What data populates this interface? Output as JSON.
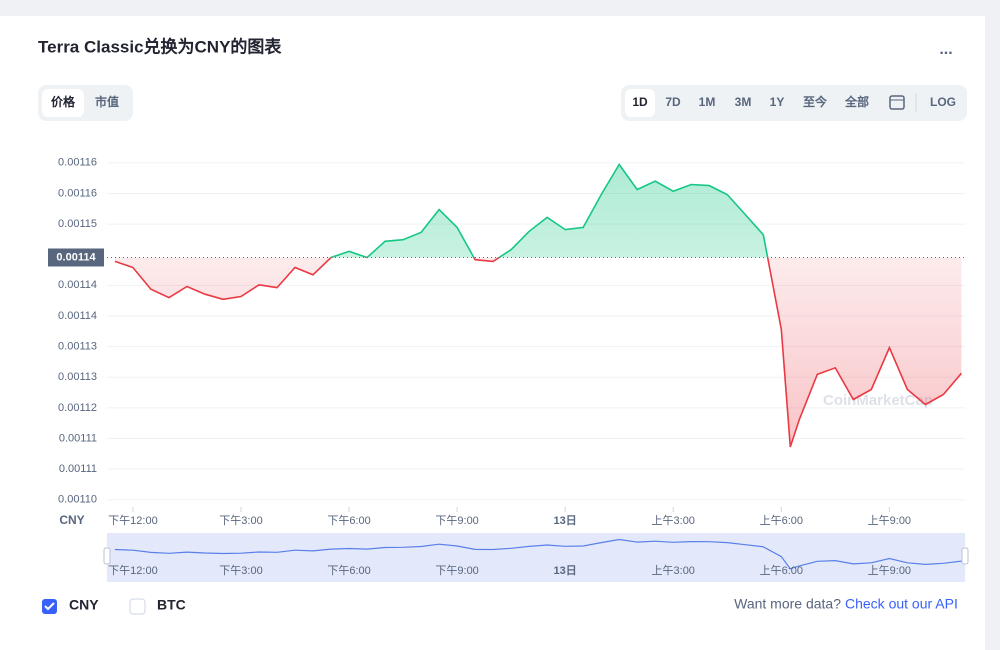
{
  "header": {
    "title": "Terra Classic兑换为CNY的图表",
    "menu": "...",
    "tabs": [
      "价格",
      "市值"
    ],
    "ranges": [
      "1D",
      "7D",
      "1M",
      "3M",
      "1Y",
      "至今",
      "全部"
    ],
    "log": "LOG"
  },
  "chart_data": {
    "type": "line",
    "currency_label": "CNY",
    "watermark": "CoinMarketCap",
    "up_color": "#16c784",
    "down_color": "#ea3943",
    "nav_color": "#5b7fe8",
    "grid": true,
    "baseline": {
      "value": 0.001147,
      "label": "0.00114"
    },
    "xlim": [
      11.28,
      35.1
    ],
    "ylim": [
      0.0011022,
      0.0011663
    ],
    "xticks": [
      {
        "value": 12,
        "label": "下午12:00"
      },
      {
        "value": 15,
        "label": "下午3:00"
      },
      {
        "value": 18,
        "label": "下午6:00"
      },
      {
        "value": 21,
        "label": "下午9:00"
      },
      {
        "value": 24,
        "label": "13日"
      },
      {
        "value": 27,
        "label": "上午3:00"
      },
      {
        "value": 30,
        "label": "上午6:00"
      },
      {
        "value": 33,
        "label": "上午9:00"
      }
    ],
    "yticks": [
      {
        "value": 0.0011035,
        "label": "0.00110"
      },
      {
        "value": 0.001109,
        "label": "0.00111"
      },
      {
        "value": 0.0011145,
        "label": "0.00111"
      },
      {
        "value": 0.00112,
        "label": "0.00112"
      },
      {
        "value": 0.0011255,
        "label": "0.00113"
      },
      {
        "value": 0.001131,
        "label": "0.00113"
      },
      {
        "value": 0.0011365,
        "label": "0.00114"
      },
      {
        "value": 0.001142,
        "label": "0.00114"
      },
      {
        "value": 0.001153,
        "label": "0.00115"
      },
      {
        "value": 0.0011585,
        "label": "0.00116"
      },
      {
        "value": 0.001164,
        "label": "0.00116"
      }
    ],
    "x": [
      11.5,
      12,
      12.5,
      13,
      13.5,
      14,
      14.5,
      15,
      15.5,
      16,
      16.5,
      17,
      17.5,
      18,
      18.5,
      19,
      19.5,
      20,
      20.5,
      21,
      21.5,
      22,
      22.5,
      23,
      23.5,
      24,
      24.5,
      25,
      25.5,
      26,
      26.5,
      27,
      27.5,
      28,
      28.5,
      29,
      29.5,
      30,
      30.25,
      30.5,
      31,
      31.5,
      32,
      32.5,
      33,
      33.5,
      34,
      34.5,
      35
    ],
    "values": [
      0.0011463,
      0.0011452,
      0.0011413,
      0.0011398,
      0.0011418,
      0.0011404,
      0.0011395,
      0.00114,
      0.0011421,
      0.0011416,
      0.0011452,
      0.0011439,
      0.001147,
      0.0011481,
      0.001147,
      0.0011499,
      0.0011502,
      0.0011515,
      0.0011556,
      0.0011524,
      0.0011466,
      0.0011463,
      0.0011484,
      0.0011517,
      0.0011542,
      0.001152,
      0.0011524,
      0.0011583,
      0.0011637,
      0.0011592,
      0.0011607,
      0.0011589,
      0.0011601,
      0.0011599,
      0.0011583,
      0.0011547,
      0.0011511,
      0.0011341,
      0.001113,
      0.0011179,
      0.001126,
      0.0011272,
      0.0011215,
      0.0011233,
      0.0011308,
      0.0011233,
      0.0011206,
      0.0011224,
      0.0011262
    ]
  },
  "footer": {
    "legend": [
      "CNY",
      "BTC"
    ],
    "more": "Want more data?",
    "link": "Check out our API"
  }
}
